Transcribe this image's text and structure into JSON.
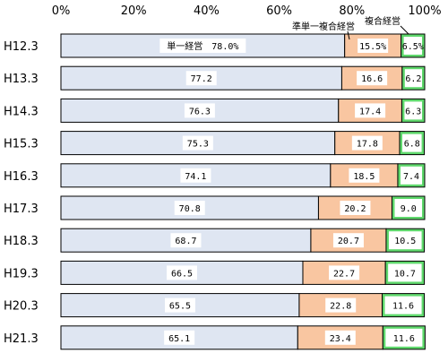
{
  "chart_data": {
    "type": "bar",
    "orientation": "horizontal",
    "stacked": "percent",
    "xlim": [
      0,
      100
    ],
    "x_ticks": [
      "0%",
      "20%",
      "40%",
      "60%",
      "80%",
      "100%"
    ],
    "x_tick_values": [
      0,
      20,
      40,
      60,
      80,
      100
    ],
    "categories": [
      "H12.3",
      "H13.3",
      "H14.3",
      "H15.3",
      "H16.3",
      "H17.3",
      "H18.3",
      "H19.3",
      "H20.3",
      "H21.3"
    ],
    "series": [
      {
        "color": "#dfe6f2",
        "values": [
          78.0,
          77.2,
          76.3,
          75.3,
          74.1,
          70.8,
          68.7,
          66.5,
          65.5,
          65.1
        ],
        "labels": [
          "単一経営　78.0%",
          "77.2",
          "76.3",
          "75.3",
          "74.1",
          "70.8",
          "68.7",
          "66.5",
          "65.5",
          "65.1"
        ]
      },
      {
        "color": "#f9c6a1",
        "values": [
          15.5,
          16.6,
          17.4,
          17.8,
          18.5,
          20.2,
          20.7,
          22.7,
          22.8,
          23.4
        ],
        "labels": [
          "15.5%",
          "16.6",
          "17.4",
          "17.8",
          "18.5",
          "20.2",
          "20.7",
          "22.7",
          "22.8",
          "23.4"
        ]
      },
      {
        "color": "#5fd86c",
        "values": [
          6.5,
          6.2,
          6.3,
          6.8,
          7.4,
          9.0,
          10.5,
          10.7,
          11.6,
          11.6
        ],
        "labels": [
          "6.5%",
          "6.2",
          "6.3",
          "6.8",
          "7.4",
          "9.0",
          "10.5",
          "10.7",
          "11.6",
          "11.6"
        ]
      }
    ],
    "annotations": [
      "準単一複合経営",
      "複合経営"
    ],
    "grid": false,
    "legend": "none"
  }
}
